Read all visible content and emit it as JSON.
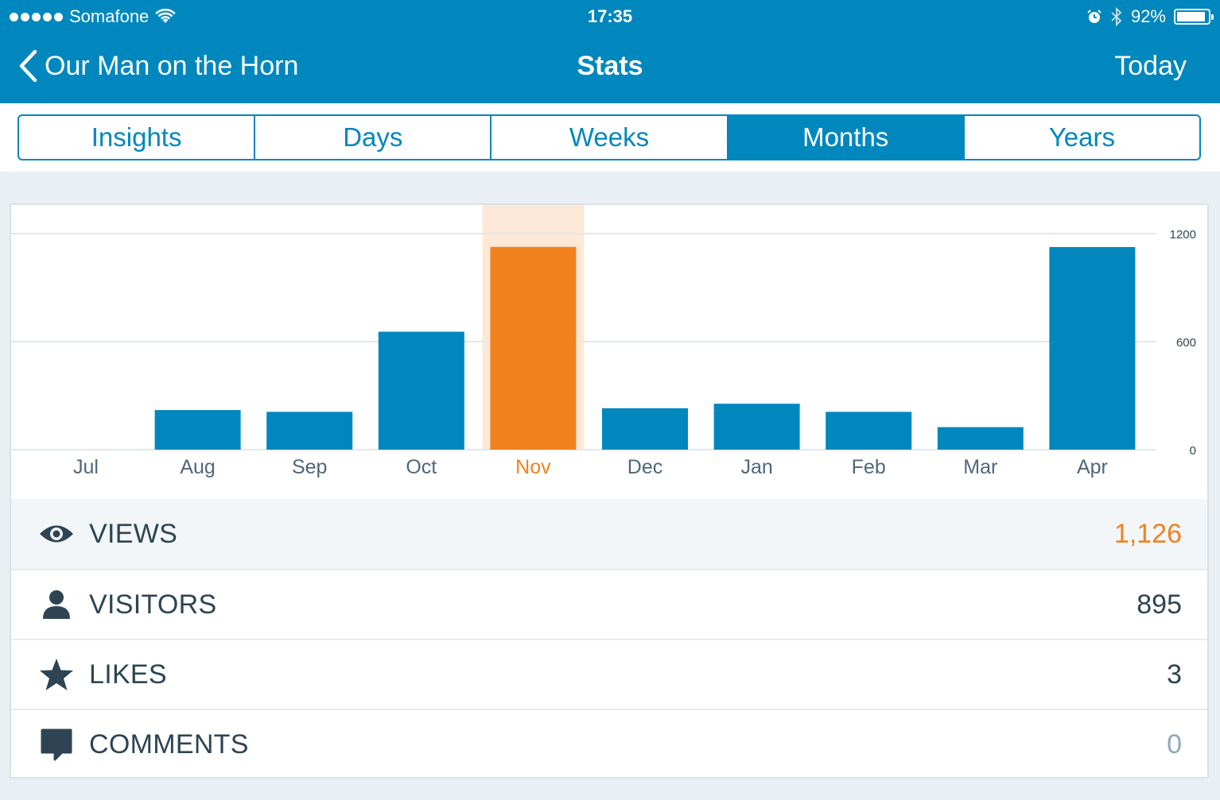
{
  "status_bar": {
    "carrier": "Somafone",
    "time": "17:35",
    "battery": "92%",
    "battery_level": 0.92,
    "icons": [
      "signal-dots-icon",
      "wifi-icon",
      "alarm-icon",
      "bluetooth-icon",
      "battery-icon"
    ]
  },
  "nav": {
    "back_label": "Our Man on the Horn",
    "title": "Stats",
    "right_label": "Today"
  },
  "tabs": [
    {
      "label": "Insights",
      "active": false
    },
    {
      "label": "Days",
      "active": false
    },
    {
      "label": "Weeks",
      "active": false
    },
    {
      "label": "Months",
      "active": true
    },
    {
      "label": "Years",
      "active": false
    }
  ],
  "chart_data": {
    "type": "bar",
    "categories": [
      "Jul",
      "Aug",
      "Sep",
      "Oct",
      "Nov",
      "Dec",
      "Jan",
      "Feb",
      "Mar",
      "Apr"
    ],
    "values": [
      0,
      220,
      210,
      655,
      1126,
      230,
      255,
      210,
      125,
      1125
    ],
    "selected_index": 4,
    "y_ticks": [
      "1200",
      "600",
      "0"
    ],
    "ylim": [
      0,
      1200
    ],
    "grid": true,
    "colors": {
      "bar": "#0087be",
      "selected_bar": "#f0821e",
      "selected_band": "#fde8d8",
      "grid": "#e1e8ed"
    }
  },
  "stats": [
    {
      "icon": "eye-icon",
      "label": "VIEWS",
      "value": "1,126",
      "style": "orange"
    },
    {
      "icon": "person-icon",
      "label": "VISITORS",
      "value": "895",
      "style": "normal"
    },
    {
      "icon": "star-icon",
      "label": "LIKES",
      "value": "3",
      "style": "normal"
    },
    {
      "icon": "comment-icon",
      "label": "COMMENTS",
      "value": "0",
      "style": "muted"
    }
  ]
}
